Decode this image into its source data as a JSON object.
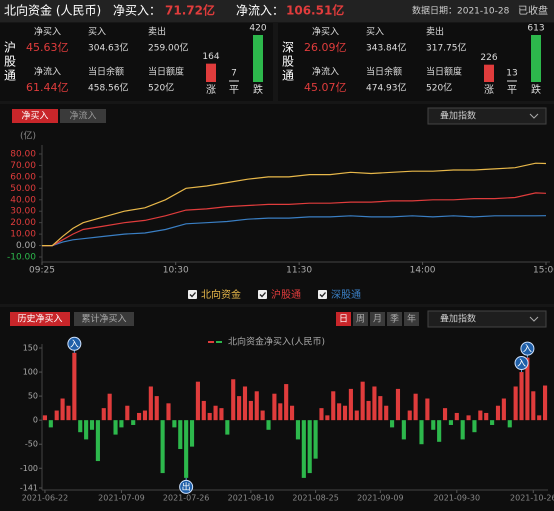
{
  "header": {
    "title": "北向资金 (人民币)",
    "net_buy_label": "净买入：",
    "net_buy": "71.72亿",
    "net_inflow_label": "净流入：",
    "net_inflow": "106.51亿",
    "date": "数据日期：2021-10-28",
    "status": "已收盘"
  },
  "panels": [
    {
      "name": "沪股通",
      "fields": [
        {
          "label": "净买入",
          "value": "45.63亿"
        },
        {
          "label": "买入",
          "value": "304.63亿"
        },
        {
          "label": "卖出",
          "value": "259.00亿"
        },
        {
          "label": "净流入",
          "value": "61.44亿"
        },
        {
          "label": "当日余额",
          "value": "458.56亿"
        },
        {
          "label": "当日额度",
          "value": "520亿"
        }
      ],
      "breadth": {
        "values": [
          164,
          7,
          420
        ],
        "labels": [
          "涨",
          "平",
          "跌"
        ],
        "colors": [
          "#e03c3c",
          "#777777",
          "#2db84c"
        ]
      }
    },
    {
      "name": "深股通",
      "fields": [
        {
          "label": "净买入",
          "value": "26.09亿"
        },
        {
          "label": "买入",
          "value": "343.84亿"
        },
        {
          "label": "卖出",
          "value": "317.75亿"
        },
        {
          "label": "净流入",
          "value": "45.07亿"
        },
        {
          "label": "当日余额",
          "value": "474.93亿"
        },
        {
          "label": "当日额度",
          "value": "520亿"
        }
      ],
      "breadth": {
        "values": [
          226,
          13,
          613
        ],
        "labels": [
          "涨",
          "平",
          "跌"
        ],
        "colors": [
          "#e03c3c",
          "#777777",
          "#2db84c"
        ]
      }
    }
  ],
  "top_tabs": [
    "净买入",
    "净流入"
  ],
  "top_overlay": "叠加指数",
  "bottom_tabs": [
    "历史净买入",
    "累计净买入"
  ],
  "periods": [
    "日",
    "周",
    "月",
    "季",
    "年"
  ],
  "bottom_overlay": "叠加指数",
  "chart_data": [
    {
      "type": "line",
      "y_label": "(亿)",
      "grid": false,
      "x": [
        0,
        5,
        10,
        15,
        20,
        30,
        40,
        50,
        60,
        70,
        80,
        90,
        100,
        110,
        120,
        130,
        140,
        150,
        160,
        170,
        180,
        190,
        200,
        210,
        220,
        230,
        240,
        245
      ],
      "xlim": [
        0,
        245
      ],
      "xticks": [
        {
          "value": 0,
          "label": "09:25"
        },
        {
          "value": 65,
          "label": "10:30"
        },
        {
          "value": 125,
          "label": "11:30"
        },
        {
          "value": 185,
          "label": "14:00"
        },
        {
          "value": 245,
          "label": "15:00"
        }
      ],
      "ylim": [
        -10,
        80
      ],
      "yticks": [
        {
          "value": 80,
          "label": "80.00"
        },
        {
          "value": 70,
          "label": "70.00"
        },
        {
          "value": 60,
          "label": "60.00"
        },
        {
          "value": 50,
          "label": "50.00"
        },
        {
          "value": 40,
          "label": "40.00"
        },
        {
          "value": 30,
          "label": "30.00"
        },
        {
          "value": 20,
          "label": "20.00"
        },
        {
          "value": 10,
          "label": "10.00"
        },
        {
          "value": 0,
          "label": "0.00"
        },
        {
          "value": -10,
          "label": "-10.00"
        }
      ],
      "series": [
        {
          "name": "北向资金",
          "color": "#e8b84a",
          "values": [
            0,
            0,
            8,
            15,
            20,
            25,
            30,
            33,
            40,
            50,
            52,
            55,
            58,
            60,
            60,
            62,
            62,
            64,
            63,
            64,
            65,
            65,
            66,
            66,
            67,
            68,
            72,
            71.72
          ]
        },
        {
          "name": "沪股通",
          "color": "#e03c3c",
          "values": [
            0,
            0,
            5,
            10,
            14,
            17,
            20,
            22,
            26,
            31,
            32,
            34,
            35,
            36,
            36,
            37,
            37,
            38,
            38,
            39,
            39,
            40,
            40,
            41,
            41,
            42,
            46,
            45.63
          ]
        },
        {
          "name": "深股通",
          "color": "#3a7fc4",
          "values": [
            0,
            0,
            3,
            5,
            6,
            8,
            10,
            11,
            14,
            19,
            20,
            21,
            23,
            24,
            24,
            25,
            25,
            26,
            25,
            25,
            26,
            25,
            26,
            25,
            26,
            26,
            26,
            26.09
          ]
        }
      ]
    },
    {
      "type": "bar",
      "categories": [
        "2021-06-22",
        null,
        null,
        null,
        null,
        null,
        null,
        null,
        null,
        null,
        null,
        null,
        null,
        "2021-07-09",
        null,
        null,
        null,
        null,
        null,
        null,
        null,
        null,
        null,
        null,
        "2021-07-26",
        null,
        null,
        null,
        null,
        null,
        null,
        null,
        null,
        null,
        null,
        "2021-08-10",
        null,
        null,
        null,
        null,
        null,
        null,
        null,
        null,
        null,
        null,
        "2021-08-25",
        null,
        null,
        null,
        null,
        null,
        null,
        null,
        null,
        null,
        null,
        "2021-09-09",
        null,
        null,
        null,
        null,
        null,
        null,
        null,
        null,
        null,
        null,
        null,
        null,
        "2021-09-30",
        null,
        null,
        null,
        null,
        null,
        null,
        null,
        null,
        null,
        null,
        null,
        null,
        "2021-10-26",
        null,
        null
      ],
      "series": [
        {
          "name": "北向资金净买入(人民币)",
          "color": "#e03c3c",
          "negative_color": "#2db84c",
          "values": [
            10,
            -15,
            20,
            45,
            30,
            140,
            -25,
            -40,
            -20,
            -85,
            25,
            55,
            -30,
            -15,
            30,
            -10,
            15,
            20,
            70,
            50,
            -110,
            35,
            -15,
            -60,
            -120,
            -55,
            80,
            40,
            15,
            30,
            25,
            -30,
            85,
            50,
            70,
            40,
            60,
            20,
            -20,
            55,
            35,
            75,
            30,
            -40,
            -120,
            -110,
            -80,
            25,
            10,
            60,
            35,
            30,
            65,
            20,
            80,
            40,
            70,
            50,
            30,
            -15,
            65,
            -40,
            20,
            55,
            -50,
            45,
            -20,
            -45,
            25,
            -10,
            15,
            -40,
            10,
            -25,
            20,
            15,
            -10,
            30,
            45,
            -15,
            70,
            100,
            130,
            60,
            10,
            72
          ]
        }
      ],
      "ylim": [
        -141,
        150
      ],
      "yticks": [
        150,
        100,
        50,
        0,
        -50,
        -100,
        -141
      ],
      "markers": [
        {
          "at": 5,
          "label": "入"
        },
        {
          "at": 24,
          "label": "出"
        },
        {
          "at": 81,
          "label": "入"
        },
        {
          "at": 82,
          "label": "入"
        }
      ]
    }
  ]
}
